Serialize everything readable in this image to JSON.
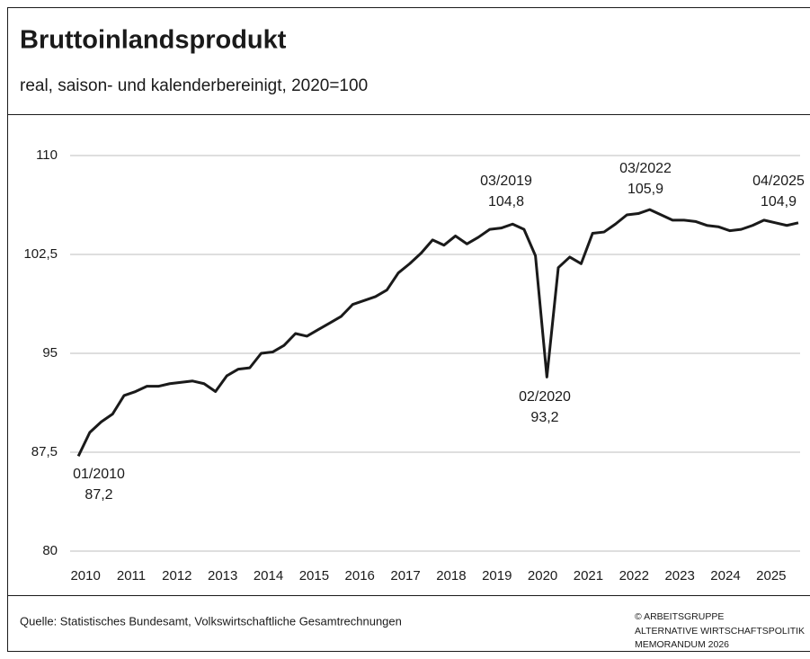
{
  "chart_data": {
    "type": "line",
    "title": "Bruttoinlandsprodukt",
    "subtitle": "real, saison- und kalenderbereinigt, 2020=100",
    "source": "Quelle: Statistisches Bundesamt, Volkswirtschaftliche Gesamtrechnungen",
    "copyright": [
      "© ARBEITSGRUPPE",
      "ALTERNATIVE WIRTSCHAFTSPOLITIK",
      "MEMORANDUM 2026"
    ],
    "color": "#1a1a1a",
    "grid": true,
    "x": [
      2010,
      2010.25,
      2010.5,
      2010.75,
      2011,
      2011.25,
      2011.5,
      2011.75,
      2012,
      2012.25,
      2012.5,
      2012.75,
      2013,
      2013.25,
      2013.5,
      2013.75,
      2014,
      2014.25,
      2014.5,
      2014.75,
      2015,
      2015.25,
      2015.5,
      2015.75,
      2016,
      2016.25,
      2016.5,
      2016.75,
      2017,
      2017.25,
      2017.5,
      2017.75,
      2018,
      2018.25,
      2018.5,
      2018.75,
      2019,
      2019.25,
      2019.5,
      2019.75,
      2020,
      2020.25,
      2020.5,
      2020.75,
      2021,
      2021.25,
      2021.5,
      2021.75,
      2022,
      2022.25,
      2022.5,
      2022.75,
      2023,
      2023.25,
      2023.5,
      2023.75,
      2024,
      2024.25,
      2024.5,
      2024.75,
      2025,
      2025.25,
      2025.5,
      2025.75
    ],
    "values": [
      87.2,
      89.0,
      89.8,
      90.4,
      91.8,
      92.1,
      92.5,
      92.5,
      92.7,
      92.8,
      92.9,
      92.7,
      92.1,
      93.3,
      93.8,
      93.9,
      95.0,
      95.1,
      95.6,
      96.5,
      96.3,
      96.8,
      97.3,
      97.8,
      98.7,
      99.0,
      99.3,
      99.8,
      101.1,
      101.8,
      102.6,
      103.6,
      103.2,
      103.9,
      103.3,
      103.8,
      104.4,
      104.5,
      104.8,
      104.4,
      102.4,
      93.2,
      101.5,
      102.3,
      101.8,
      104.1,
      104.2,
      104.8,
      105.5,
      105.6,
      105.9,
      105.5,
      105.1,
      105.1,
      105.0,
      104.7,
      104.6,
      104.3,
      104.4,
      104.7,
      105.1,
      104.9,
      104.7,
      104.9
    ],
    "xlim": [
      2009.82,
      2025.79
    ],
    "xticks": [
      2010,
      2011,
      2012,
      2013,
      2014,
      2015,
      2016,
      2017,
      2018,
      2019,
      2020,
      2021,
      2022,
      2023,
      2024,
      2025
    ],
    "ylim": [
      80,
      110
    ],
    "yticks": [
      80,
      {
        "value": 87.5,
        "label": "87,5"
      },
      95,
      {
        "value": 102.5,
        "label": "102,5"
      },
      110
    ],
    "annotations": [
      {
        "date": "01/2010",
        "value": "87,2"
      },
      {
        "date": "03/2019",
        "value": "104,8"
      },
      {
        "date": "02/2020",
        "value": "93,2"
      },
      {
        "date": "03/2022",
        "value": "105,9"
      },
      {
        "date": "04/2025",
        "value": "104,9"
      }
    ]
  }
}
